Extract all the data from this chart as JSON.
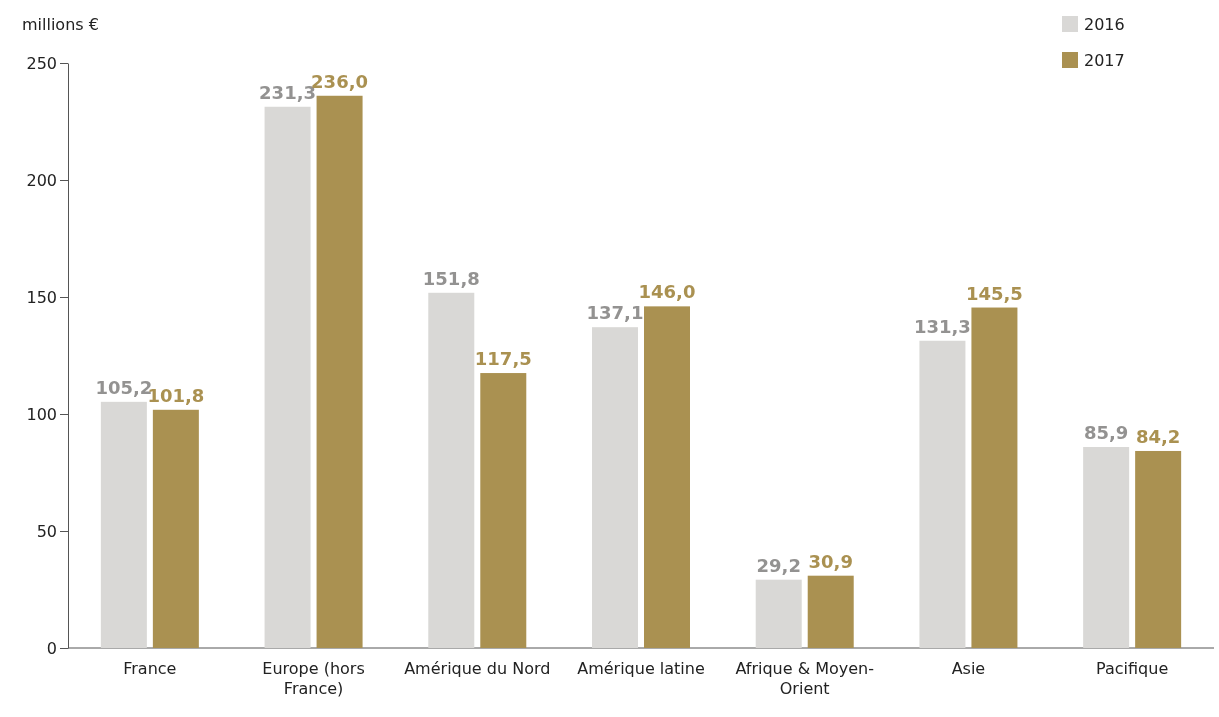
{
  "chart_data": {
    "type": "bar",
    "ylabel": "millions €",
    "categories": [
      "France",
      "Europe (hors France)",
      "Amérique du Nord",
      "Amérique latine",
      "Afrique & Moyen-Orient",
      "Asie",
      "Pacifique"
    ],
    "series": [
      {
        "name": "2016",
        "color": "#d9d8d6",
        "values": [
          105.2,
          231.3,
          151.8,
          137.1,
          29.2,
          131.3,
          85.9
        ],
        "value_labels": [
          "105,2",
          "231,3",
          "151,8",
          "137,1",
          "29,2",
          "131,3",
          "85,9"
        ]
      },
      {
        "name": "2017",
        "color": "#aa9151",
        "values": [
          101.8,
          236.0,
          117.5,
          146.0,
          30.9,
          145.5,
          84.2
        ],
        "value_labels": [
          "101,8",
          "236,0",
          "117,5",
          "146,0",
          "30,9",
          "145,5",
          "84,2"
        ]
      }
    ],
    "ylim": [
      0,
      250
    ],
    "yticks": [
      0,
      50,
      100,
      150,
      200,
      250
    ],
    "grid": false,
    "legend": "top right"
  }
}
